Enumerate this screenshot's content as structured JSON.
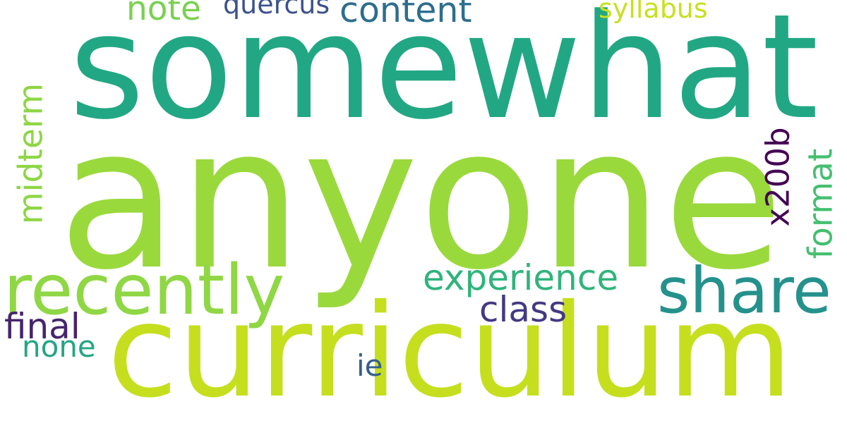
{
  "wordcloud": {
    "words": {
      "somewhat": {
        "text": "somewhat",
        "color": "#22a784"
      },
      "anyone": {
        "text": "anyone",
        "color": "#9ad93c"
      },
      "curriculum": {
        "text": "curriculum",
        "color": "#c5df1f"
      },
      "recently": {
        "text": "recently",
        "color": "#8fd744"
      },
      "share": {
        "text": "share",
        "color": "#25918c"
      },
      "content": {
        "text": "content",
        "color": "#2d6e8e"
      },
      "note": {
        "text": "note",
        "color": "#7ad151"
      },
      "quercus": {
        "text": "quercus",
        "color": "#3b528b"
      },
      "syllabus": {
        "text": "syllabus",
        "color": "#c8e020"
      },
      "experience": {
        "text": "experience",
        "color": "#2fb47c"
      },
      "class": {
        "text": "class",
        "color": "#433982"
      },
      "final": {
        "text": "final",
        "color": "#46256b"
      },
      "none": {
        "text": "none",
        "color": "#25a584"
      },
      "ie": {
        "text": "ie",
        "color": "#355f8d"
      },
      "midterm": {
        "text": "midterm",
        "color": "#8ed645"
      },
      "x200b": {
        "text": "x200b",
        "color": "#440154"
      },
      "format": {
        "text": "format",
        "color": "#44bf70"
      }
    }
  }
}
